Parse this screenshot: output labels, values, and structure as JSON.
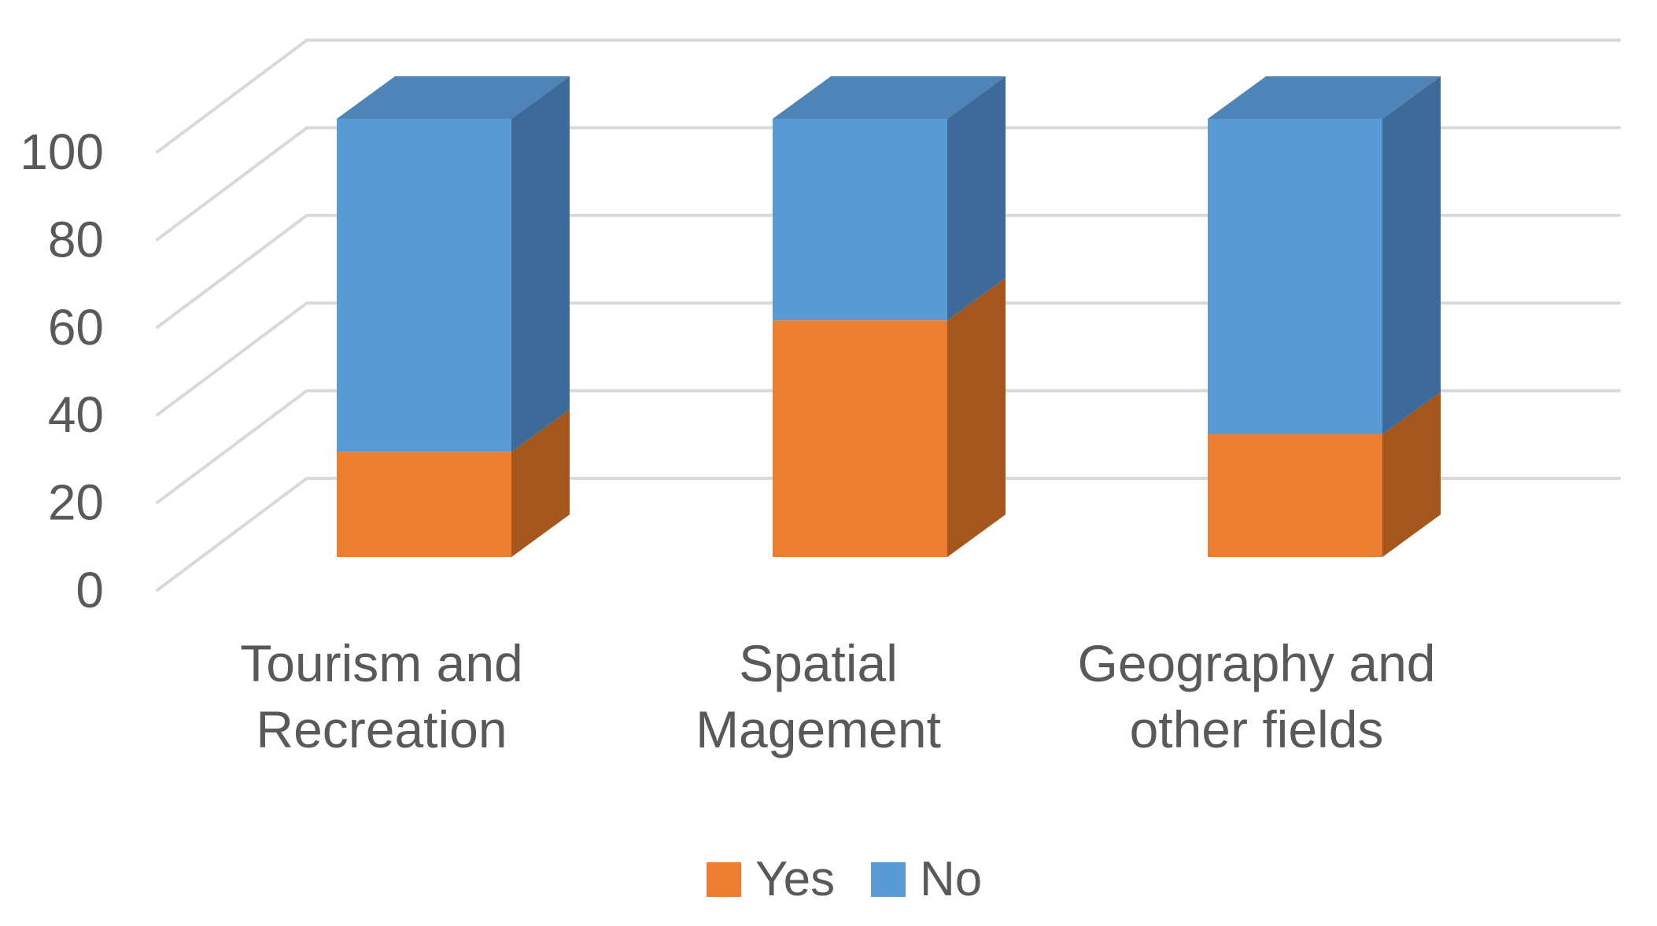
{
  "chart_data": {
    "type": "bar",
    "variant": "3d-stacked-column",
    "title": "",
    "xlabel": "",
    "ylabel": "",
    "categories": [
      "Tourism and\nRecreation",
      "Spatial\nMagement",
      "Geography and\nother fields"
    ],
    "series": [
      {
        "name": "Yes",
        "values": [
          24,
          54,
          28
        ],
        "front_color": "#ED7D31",
        "side_color": "#A4561C",
        "top_color": "#C96A22"
      },
      {
        "name": "No",
        "values": [
          76,
          46,
          72
        ],
        "front_color": "#5B9BD5",
        "side_color": "#3E6A99",
        "top_color": "#4E84B8"
      }
    ],
    "stacked": true,
    "ylim": [
      0,
      100
    ],
    "yticks": [
      "0",
      "20",
      "40",
      "60",
      "80",
      "100"
    ],
    "grid": true,
    "gridline_color": "#D9D9D9",
    "axis_text_color": "#595959",
    "legend_position": "bottom"
  },
  "legend": {
    "yes_label": "Yes",
    "no_label": "No"
  }
}
